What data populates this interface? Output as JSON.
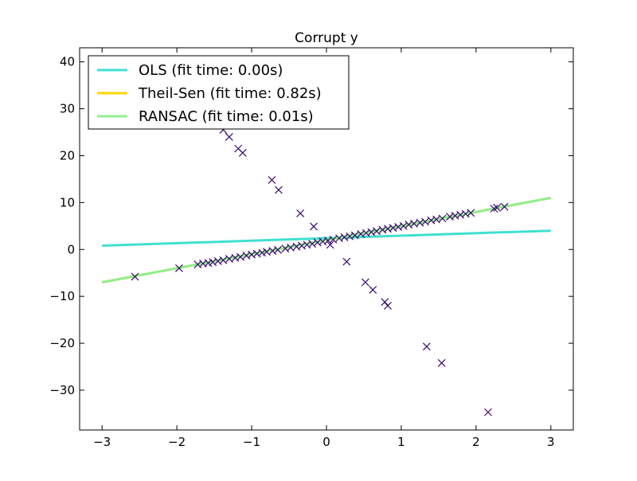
{
  "chart_data": {
    "type": "scatter",
    "title": "Corrupt y",
    "xlabel": "",
    "ylabel": "",
    "xlim": [
      -3.3,
      3.3
    ],
    "ylim": [
      -38.5,
      43
    ],
    "x_ticks": [
      -3,
      -2,
      -1,
      0,
      1,
      2,
      3
    ],
    "x_tick_labels": [
      "−3",
      "−2",
      "−1",
      "0",
      "1",
      "2",
      "3"
    ],
    "y_ticks": [
      -30,
      -20,
      -10,
      0,
      10,
      20,
      30,
      40
    ],
    "y_tick_labels": [
      "−30",
      "−20",
      "−10",
      "0",
      "10",
      "20",
      "30",
      "40"
    ],
    "grid": false,
    "legend_placement": "top-left",
    "points_color": "#3b0a6e",
    "points": [
      [
        -2.56,
        -5.8
      ],
      [
        -1.97,
        -4.0
      ],
      [
        -1.72,
        -3.2
      ],
      [
        -1.65,
        -3.0
      ],
      [
        -1.58,
        -2.9
      ],
      [
        -1.52,
        -2.7
      ],
      [
        -1.45,
        -2.5
      ],
      [
        -1.38,
        -2.3
      ],
      [
        -1.3,
        -2.0
      ],
      [
        -1.22,
        -1.8
      ],
      [
        -1.15,
        -1.6
      ],
      [
        -1.07,
        -1.3
      ],
      [
        -1.0,
        -1.1
      ],
      [
        -0.93,
        -0.9
      ],
      [
        -0.86,
        -0.7
      ],
      [
        -0.8,
        -0.5
      ],
      [
        -0.72,
        -0.3
      ],
      [
        -0.65,
        -0.1
      ],
      [
        -0.55,
        0.2
      ],
      [
        -0.48,
        0.4
      ],
      [
        -0.4,
        0.6
      ],
      [
        -0.33,
        0.8
      ],
      [
        -0.26,
        1.0
      ],
      [
        -0.19,
        1.2
      ],
      [
        -0.12,
        1.5
      ],
      [
        -0.05,
        1.7
      ],
      [
        0.02,
        1.9
      ],
      [
        0.09,
        2.1
      ],
      [
        0.17,
        2.4
      ],
      [
        0.24,
        2.6
      ],
      [
        0.31,
        2.8
      ],
      [
        0.38,
        3.0
      ],
      [
        0.46,
        3.3
      ],
      [
        0.53,
        3.5
      ],
      [
        0.6,
        3.7
      ],
      [
        0.67,
        3.9
      ],
      [
        0.75,
        4.2
      ],
      [
        0.82,
        4.4
      ],
      [
        0.89,
        4.6
      ],
      [
        0.96,
        4.8
      ],
      [
        1.03,
        5.0
      ],
      [
        1.1,
        5.3
      ],
      [
        1.17,
        5.5
      ],
      [
        1.25,
        5.7
      ],
      [
        1.32,
        5.9
      ],
      [
        1.4,
        6.2
      ],
      [
        1.47,
        6.4
      ],
      [
        1.55,
        6.6
      ],
      [
        1.65,
        7.0
      ],
      [
        1.72,
        7.2
      ],
      [
        1.79,
        7.4
      ],
      [
        1.86,
        7.6
      ],
      [
        1.93,
        7.8
      ],
      [
        2.24,
        8.7
      ],
      [
        2.28,
        8.9
      ],
      [
        2.38,
        9.1
      ],
      [
        -1.38,
        25.5
      ],
      [
        -1.3,
        24.0
      ],
      [
        -1.18,
        21.5
      ],
      [
        -1.12,
        20.6
      ],
      [
        -0.73,
        14.8
      ],
      [
        -0.64,
        12.7
      ],
      [
        -0.35,
        7.7
      ],
      [
        -0.17,
        4.9
      ],
      [
        0.05,
        1.0
      ],
      [
        0.27,
        -2.6
      ],
      [
        0.52,
        -7.0
      ],
      [
        0.62,
        -8.6
      ],
      [
        0.78,
        -11.2
      ],
      [
        0.82,
        -12.0
      ],
      [
        1.34,
        -20.7
      ],
      [
        1.54,
        -24.2
      ],
      [
        2.16,
        -34.7
      ]
    ],
    "series": [
      {
        "name": "OLS (fit time: 0.00s)",
        "color": "#40e0d0",
        "x": [
          -3,
          3
        ],
        "y": [
          0.8,
          4.0
        ]
      },
      {
        "name": "Theil-Sen (fit time: 0.82s)",
        "color": "#ffd700",
        "x": [
          -3,
          3
        ],
        "y": [
          -7.0,
          11.0
        ]
      },
      {
        "name": "RANSAC (fit time: 0.01s)",
        "color": "#90ee90",
        "x": [
          -3,
          3
        ],
        "y": [
          -7.0,
          11.0
        ]
      }
    ]
  }
}
